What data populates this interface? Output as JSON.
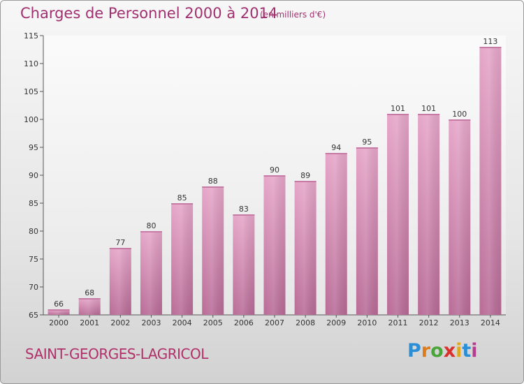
{
  "title": "Charges de Personnel 2000 à 2014",
  "subtitle": "(en milliers d'€)",
  "commune": "SAINT-GEORGES-LAGRICOL",
  "logo": {
    "text": "Proxiti",
    "letters": [
      "P",
      "r",
      "o",
      "x",
      "i",
      "t",
      "i"
    ]
  },
  "colors": {
    "accent": "#a0306e",
    "bar": "#d98ab5"
  },
  "chart_data": {
    "type": "bar",
    "title": "Charges de Personnel 2000 à 2014",
    "subtitle": "(en milliers d'€)",
    "categories": [
      "2000",
      "2001",
      "2002",
      "2003",
      "2004",
      "2005",
      "2006",
      "2007",
      "2008",
      "2009",
      "2010",
      "2011",
      "2012",
      "2013",
      "2014"
    ],
    "values": [
      66,
      68,
      77,
      80,
      85,
      88,
      83,
      90,
      89,
      94,
      95,
      101,
      101,
      100,
      113
    ],
    "value_labels": [
      "66",
      "68",
      "77",
      "80",
      "85",
      "88",
      "83",
      "90",
      "89",
      "94",
      "95",
      "101",
      "101",
      "100",
      "113"
    ],
    "ylim": [
      65,
      115
    ],
    "yticks": [
      65,
      70,
      75,
      80,
      85,
      90,
      95,
      100,
      105,
      110,
      115
    ],
    "ytick_labels": [
      "65",
      "70",
      "75",
      "80",
      "85",
      "90",
      "95",
      "100",
      "105",
      "110",
      "115"
    ],
    "grid": false,
    "legend": "none"
  }
}
